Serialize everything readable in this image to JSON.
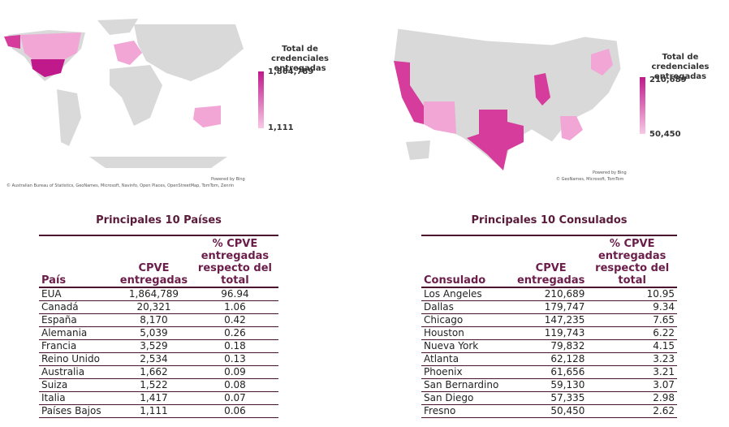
{
  "world_map": {
    "legend_title": "Total de credenciales entregadas",
    "legend_max": "1,864,789",
    "legend_min": "1,111",
    "credit": "Powered by Bing",
    "attribution": "© Australian Bureau of Statistics, GeoNames, Microsoft, Navinfo, Open Places, OpenStreetMap, TomTom, Zenrin"
  },
  "us_map": {
    "legend_title": "Total de credenciales entregadas",
    "legend_max": "210,689",
    "legend_min": "50,450",
    "credit": "Powered by Bing",
    "attribution": "© GeoNames, Microsoft, TomTom"
  },
  "countries_table": {
    "title": "Principales 10 Países",
    "headers": [
      "País",
      "CPVE entregadas",
      "% CPVE entregadas respecto del total"
    ],
    "rows": [
      [
        "EUA",
        "1,864,789",
        "96.94"
      ],
      [
        "Canadá",
        "20,321",
        "1.06"
      ],
      [
        "España",
        "8,170",
        "0.42"
      ],
      [
        "Alemania",
        "5,039",
        "0.26"
      ],
      [
        "Francia",
        "3,529",
        "0.18"
      ],
      [
        "Reino Unido",
        "2,534",
        "0.13"
      ],
      [
        "Australia",
        "1,662",
        "0.09"
      ],
      [
        "Suiza",
        "1,522",
        "0.08"
      ],
      [
        "Italia",
        "1,417",
        "0.07"
      ],
      [
        "Países Bajos",
        "1,111",
        "0.06"
      ]
    ]
  },
  "consulates_table": {
    "title": "Principales 10 Consulados",
    "headers": [
      "Consulado",
      "CPVE entregadas",
      "% CPVE entregadas respecto del total"
    ],
    "rows": [
      [
        "Los Angeles",
        "210,689",
        "10.95"
      ],
      [
        "Dallas",
        "179,747",
        "9.34"
      ],
      [
        "Chicago",
        "147,235",
        "7.65"
      ],
      [
        "Houston",
        "119,743",
        "6.22"
      ],
      [
        "Nueva York",
        "79,832",
        "4.15"
      ],
      [
        "Atlanta",
        "62,128",
        "3.23"
      ],
      [
        "Phoenix",
        "61,656",
        "3.21"
      ],
      [
        "San Bernardino",
        "59,130",
        "3.07"
      ],
      [
        "San Diego",
        "57,335",
        "2.98"
      ],
      [
        "Fresno",
        "50,450",
        "2.62"
      ]
    ]
  }
}
